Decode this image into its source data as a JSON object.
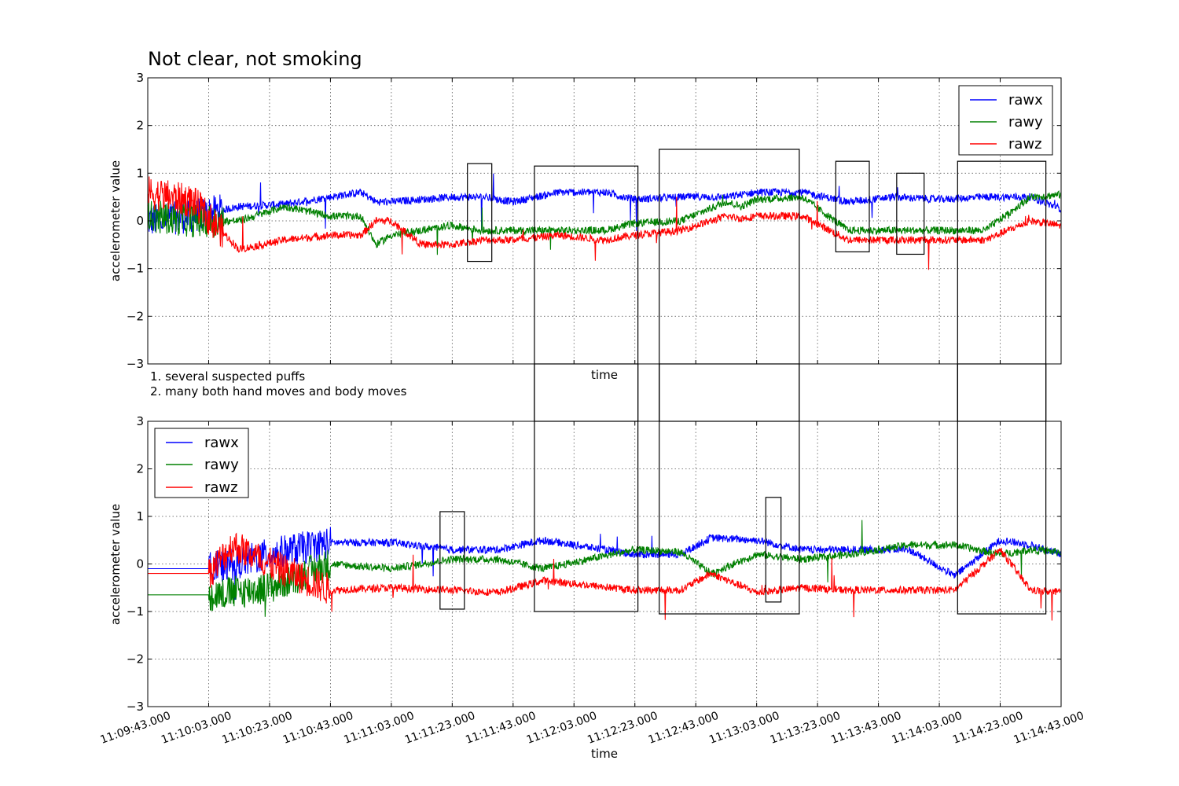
{
  "chart_data": [
    {
      "type": "line",
      "title": "Not clear, not smoking",
      "xlabel": "time",
      "ylabel": "accelerometer value",
      "ylim": [
        -3,
        3
      ],
      "yticks": [
        "−3",
        "−2",
        "−1",
        "0",
        "1",
        "2",
        "3"
      ],
      "grid": true,
      "legend_position": "top-right",
      "series": [
        {
          "name": "rawx",
          "color": "#0000ff",
          "x": [
            0,
            15,
            30,
            45,
            60,
            70,
            75,
            80,
            90,
            100,
            110,
            120,
            135,
            150,
            160,
            175,
            190,
            195,
            200,
            215,
            230,
            245,
            260,
            275,
            290,
            300
          ],
          "values": [
            0.0,
            0.1,
            0.3,
            0.35,
            0.5,
            0.6,
            0.4,
            0.4,
            0.45,
            0.5,
            0.5,
            0.4,
            0.6,
            0.6,
            0.45,
            0.5,
            0.5,
            0.55,
            0.6,
            0.6,
            0.4,
            0.5,
            0.45,
            0.5,
            0.5,
            0.25
          ]
        },
        {
          "name": "rawy",
          "color": "#008000",
          "x": [
            0,
            15,
            30,
            45,
            60,
            70,
            75,
            80,
            90,
            100,
            110,
            120,
            135,
            150,
            160,
            175,
            190,
            195,
            200,
            215,
            230,
            245,
            260,
            275,
            290,
            300
          ],
          "values": [
            0.1,
            0.0,
            0.0,
            0.3,
            0.1,
            0.1,
            -0.5,
            -0.3,
            -0.2,
            -0.1,
            -0.2,
            -0.2,
            -0.2,
            -0.2,
            -0.05,
            0.0,
            0.4,
            0.3,
            0.45,
            0.5,
            -0.2,
            -0.2,
            -0.2,
            -0.2,
            0.5,
            0.55
          ]
        },
        {
          "name": "rawz",
          "color": "#ff0000",
          "x": [
            0,
            15,
            30,
            45,
            60,
            70,
            75,
            80,
            90,
            100,
            110,
            120,
            135,
            150,
            160,
            175,
            190,
            195,
            200,
            215,
            230,
            245,
            260,
            275,
            290,
            300
          ],
          "values": [
            0.6,
            0.4,
            -0.6,
            -0.4,
            -0.3,
            -0.3,
            0.0,
            0.0,
            -0.5,
            -0.5,
            -0.4,
            -0.4,
            -0.3,
            -0.4,
            -0.3,
            -0.2,
            0.1,
            0.05,
            0.1,
            0.1,
            -0.4,
            -0.4,
            -0.4,
            -0.4,
            0.0,
            -0.1
          ]
        }
      ]
    },
    {
      "type": "line",
      "xlabel": "time",
      "ylabel": "accelerometer value",
      "ylim": [
        -3,
        3
      ],
      "yticks": [
        "−3",
        "−2",
        "−1",
        "0",
        "1",
        "2",
        "3"
      ],
      "x_tick_labels": [
        "11:09:43.000",
        "11:10:03.000",
        "11:10:23.000",
        "11:10:43.000",
        "11:11:03.000",
        "11:11:23.000",
        "11:11:43.000",
        "11:12:03.000",
        "11:12:23.000",
        "11:12:43.000",
        "11:13:03.000",
        "11:13:23.000",
        "11:13:43.000",
        "11:14:03.000",
        "11:14:23.000",
        "11:14:43.000"
      ],
      "grid": true,
      "legend_position": "top-left",
      "series": [
        {
          "name": "rawx",
          "color": "#0000ff",
          "x": [
            0,
            20,
            28,
            40,
            60,
            80,
            100,
            115,
            130,
            160,
            175,
            185,
            200,
            215,
            230,
            250,
            265,
            280,
            290,
            300
          ],
          "values": [
            -0.1,
            -0.1,
            0.0,
            0.2,
            0.45,
            0.45,
            0.3,
            0.3,
            0.5,
            0.2,
            0.2,
            0.55,
            0.5,
            0.3,
            0.3,
            0.3,
            -0.25,
            0.5,
            0.4,
            0.2
          ]
        },
        {
          "name": "rawy",
          "color": "#008000",
          "x": [
            0,
            20,
            28,
            40,
            60,
            80,
            100,
            115,
            130,
            160,
            175,
            185,
            200,
            215,
            230,
            250,
            265,
            280,
            290,
            300
          ],
          "values": [
            -0.65,
            -0.65,
            -0.6,
            -0.5,
            0.0,
            -0.1,
            0.1,
            0.1,
            -0.1,
            0.3,
            0.25,
            -0.2,
            0.2,
            0.1,
            0.2,
            0.4,
            0.4,
            0.2,
            0.3,
            0.25
          ]
        },
        {
          "name": "rawz",
          "color": "#ff0000",
          "x": [
            0,
            20,
            28,
            40,
            60,
            80,
            100,
            115,
            130,
            160,
            175,
            185,
            200,
            215,
            230,
            250,
            265,
            280,
            290,
            300
          ],
          "values": [
            -0.2,
            -0.2,
            0.4,
            0.0,
            -0.55,
            -0.5,
            -0.55,
            -0.6,
            -0.35,
            -0.55,
            -0.55,
            -0.2,
            -0.6,
            -0.5,
            -0.55,
            -0.55,
            -0.55,
            0.3,
            -0.55,
            -0.6
          ]
        }
      ]
    }
  ],
  "notes": [
    "1. several suspected puffs",
    "2. many both hand moves and body moves"
  ],
  "annotation_boxes_top": [
    {
      "x": [
        105,
        113
      ],
      "y": [
        -0.85,
        1.2
      ]
    },
    {
      "x": [
        127,
        161
      ],
      "y": [
        -3,
        1.15
      ]
    },
    {
      "x": [
        168,
        214
      ],
      "y": [
        -3,
        1.5
      ]
    },
    {
      "x": [
        226,
        237
      ],
      "y": [
        -0.65,
        1.25
      ]
    },
    {
      "x": [
        246,
        255
      ],
      "y": [
        -0.7,
        1.0
      ]
    },
    {
      "x": [
        266,
        295
      ],
      "y": [
        -3,
        1.25
      ]
    }
  ],
  "annotation_boxes_bottom": [
    {
      "x": [
        96,
        104
      ],
      "y": [
        -0.95,
        1.1
      ]
    },
    {
      "x": [
        127,
        161
      ],
      "y": [
        -1.0,
        3
      ]
    },
    {
      "x": [
        168,
        214
      ],
      "y": [
        -1.05,
        3
      ]
    },
    {
      "x": [
        203,
        208
      ],
      "y": [
        -0.8,
        1.4
      ]
    },
    {
      "x": [
        266,
        295
      ],
      "y": [
        -1.05,
        3
      ]
    }
  ]
}
